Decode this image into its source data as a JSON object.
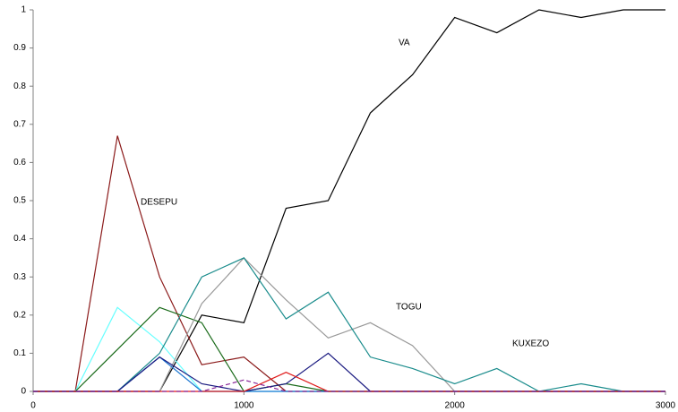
{
  "chart_data": {
    "type": "line",
    "x": [
      0,
      200,
      400,
      600,
      800,
      1000,
      1200,
      1400,
      1600,
      1800,
      2000,
      2200,
      2400,
      2600,
      2800,
      3000
    ],
    "xlim": [
      0,
      3000
    ],
    "xticks": [
      0,
      1000,
      2000,
      3000
    ],
    "ylim": [
      0,
      1
    ],
    "yticks": [
      0,
      0.1,
      0.2,
      0.3,
      0.4,
      0.5,
      0.6,
      0.7,
      0.8,
      0.9,
      1
    ],
    "grid": false,
    "series": [
      {
        "name": "VA",
        "color": "#000000",
        "values": [
          0,
          0,
          0,
          0,
          0.2,
          0.18,
          0.48,
          0.5,
          0.73,
          0.83,
          0.98,
          0.94,
          1,
          0.98,
          1,
          1
        ]
      },
      {
        "name": "DESEPU",
        "color": "#8b1a1a",
        "values": [
          0,
          0,
          0.67,
          0.3,
          0.07,
          0.09,
          0,
          0,
          0,
          0,
          0,
          0,
          0,
          0,
          0,
          0
        ]
      },
      {
        "color": "#66ffff",
        "values": [
          0,
          0,
          0.22,
          0.13,
          0,
          0,
          0,
          0,
          0,
          0,
          0,
          0,
          0,
          0,
          0,
          0
        ]
      },
      {
        "color": "#1a6b1a",
        "values": [
          0,
          0,
          0.11,
          0.22,
          0.18,
          0,
          0.02,
          0,
          0,
          0,
          0,
          0,
          0,
          0,
          0,
          0
        ]
      },
      {
        "name": "TOGU",
        "color": "#999999",
        "values": [
          0,
          0,
          0,
          0,
          0.23,
          0.35,
          0.24,
          0.14,
          0.18,
          0.12,
          0,
          0,
          0,
          0,
          0,
          0
        ]
      },
      {
        "name": "KUXEZO",
        "color": "#1a8c8c",
        "values": [
          0,
          0,
          0,
          0.1,
          0.3,
          0.35,
          0.19,
          0.26,
          0.09,
          0.06,
          0.02,
          0.06,
          0,
          0.02,
          0,
          0
        ]
      },
      {
        "color": "#1e78d2",
        "values": [
          0,
          0,
          0,
          0.09,
          0,
          0,
          0,
          0,
          0,
          0,
          0,
          0,
          0,
          0,
          0,
          0
        ]
      },
      {
        "color": "#1a1a80",
        "values": [
          0,
          0,
          0,
          0.09,
          0.02,
          0,
          0.02,
          0.1,
          0,
          0,
          0,
          0,
          0,
          0,
          0,
          0
        ]
      },
      {
        "color": "#e01a1a",
        "values": [
          0,
          0,
          0,
          0,
          0,
          0,
          0.05,
          0,
          0,
          0,
          0,
          0,
          0,
          0,
          0,
          0
        ]
      },
      {
        "color": "#8a2a9a",
        "dashed": true,
        "values": [
          0,
          0,
          0,
          0,
          0,
          0.03,
          0,
          0,
          0,
          0,
          0,
          0,
          0,
          0,
          0,
          0
        ]
      }
    ]
  }
}
